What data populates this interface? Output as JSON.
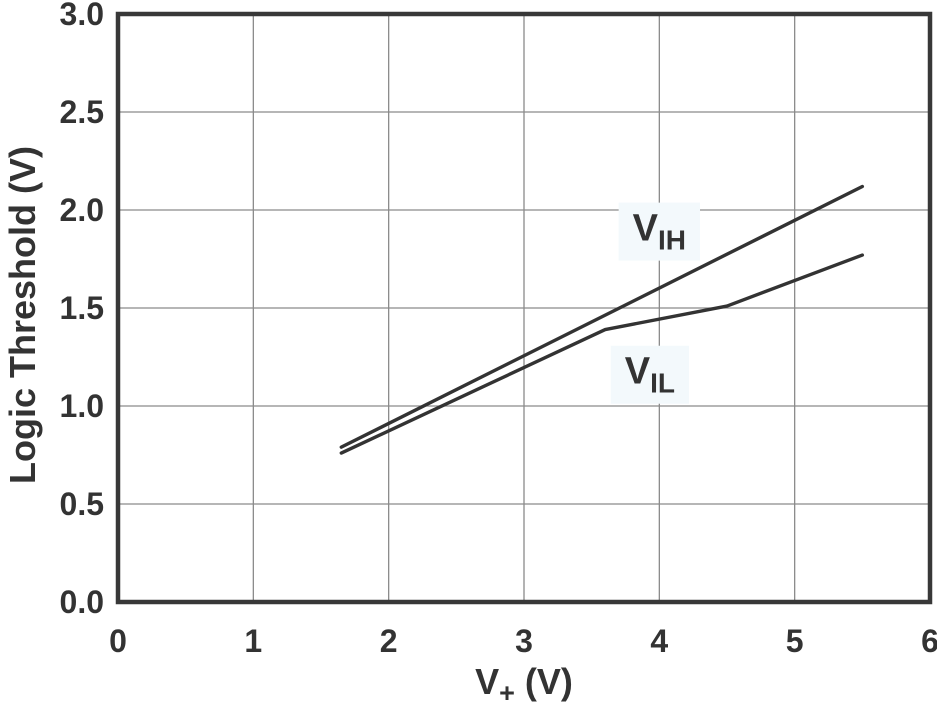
{
  "colors": {
    "background": "#ffffff",
    "line": "#333333",
    "grid": "#8a8a8a",
    "frame": "#383838",
    "text": "#333333",
    "label_bg": "#f3f9fc"
  },
  "chart_data": {
    "type": "line",
    "title": "",
    "xlabel": "V+ (V)",
    "xlabel_parts": {
      "base": "V",
      "sub": "+",
      "rest": " (V)"
    },
    "ylabel": "Logic Threshold (V)",
    "xlim": [
      0,
      6
    ],
    "ylim": [
      0,
      3
    ],
    "x_ticks": [
      "0",
      "1",
      "2",
      "3",
      "4",
      "5",
      "6"
    ],
    "y_ticks": [
      "0.0",
      "0.5",
      "1.0",
      "1.5",
      "2.0",
      "2.5",
      "3.0"
    ],
    "grid": true,
    "legend_position": "inline-curve-labels",
    "series": [
      {
        "name": "VIH",
        "label": {
          "base": "V",
          "sub": "IH"
        },
        "label_at": [
          4.0,
          1.91
        ],
        "x": [
          1.65,
          5.5
        ],
        "y": [
          0.79,
          2.12
        ]
      },
      {
        "name": "VIL",
        "label": {
          "base": "V",
          "sub": "IL"
        },
        "label_at": [
          3.93,
          1.18
        ],
        "x": [
          1.65,
          3.6,
          4.5,
          5.5
        ],
        "y": [
          0.76,
          1.39,
          1.51,
          1.77
        ]
      }
    ]
  }
}
